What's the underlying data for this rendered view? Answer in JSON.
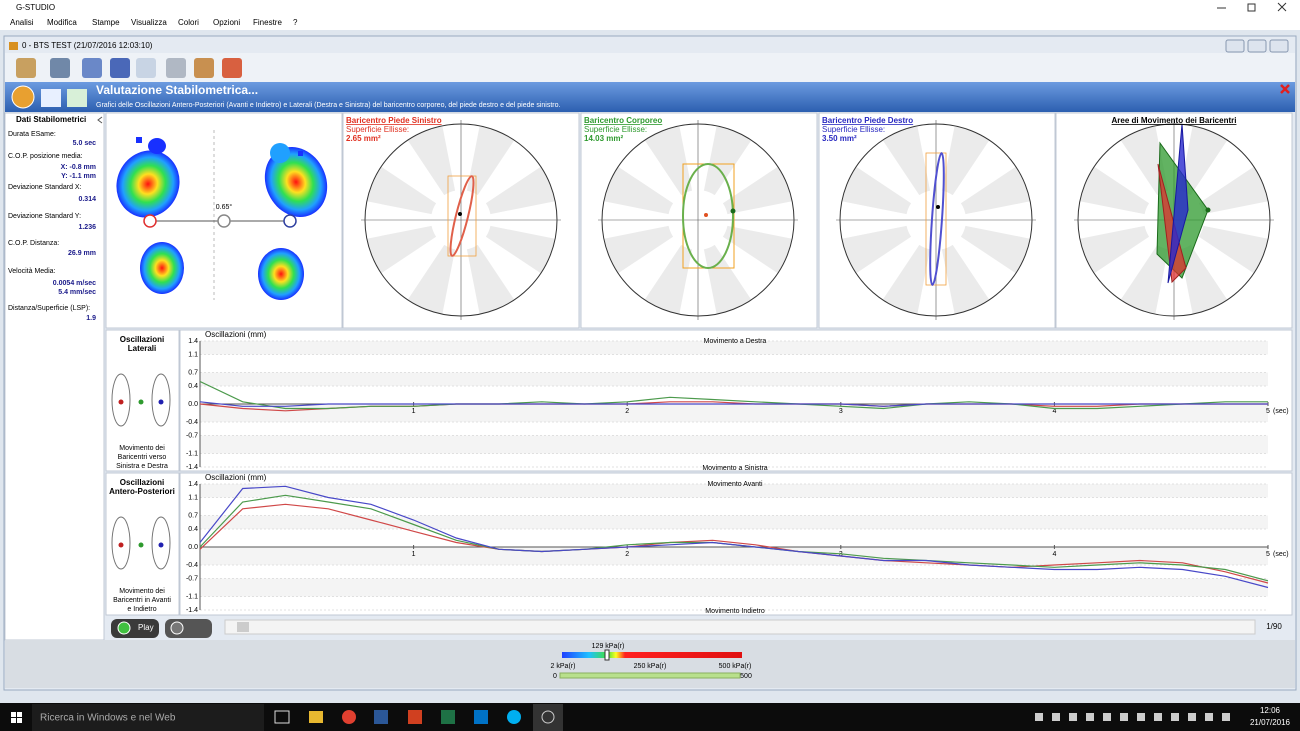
{
  "window": {
    "title": "G-STUDIO"
  },
  "menu": [
    "Analisi",
    "Modifica",
    "Stampe",
    "Visualizza",
    "Colori",
    "Opzioni",
    "Finestre",
    "?"
  ],
  "document": {
    "title": "0 -  BTS TEST  (21/07/2016 12:03:10)"
  },
  "header": {
    "title": "Valutazione Stabilometrica...",
    "subtitle": "Grafici delle Oscillazioni Antero-Posteriori (Avanti e Indietro) e Laterali (Destra e Sinistra) del baricentro corporeo, del piede destro e del piede sinistro."
  },
  "side_panel": {
    "title": "Dati Stabilometrici",
    "items": [
      {
        "label": "Durata ESame:",
        "values": [
          "5.0 sec"
        ]
      },
      {
        "label": "C.O.P. posizione media:",
        "values": [
          "X: -0.8 mm",
          "Y: -1.1 mm"
        ]
      },
      {
        "label": "Deviazione Standard X:",
        "values": [
          "0.314"
        ]
      },
      {
        "label": "Deviazione Standard Y:",
        "values": [
          "1.236"
        ]
      },
      {
        "label": "C.O.P. Distanza:",
        "values": [
          "26.9 mm"
        ]
      },
      {
        "label": "Velocità Media:",
        "values": [
          "0.0054 m/sec",
          "5.4 mm/sec"
        ]
      },
      {
        "label": "Distanza/Superficie (LSP):",
        "values": [
          "1.9"
        ]
      }
    ]
  },
  "pressure_map": {
    "angle": "0.65°"
  },
  "polar_panels": [
    {
      "title": "Baricentro Piede Sinistro",
      "label": "Superficie Ellisse:",
      "value": "2.65 mm²",
      "color": "#e03020"
    },
    {
      "title": "Baricentro Corporeo",
      "label": "Superficie Ellisse:",
      "value": "14.03 mm²",
      "color": "#2e9a2e"
    },
    {
      "title": "Baricentro Piede Destro",
      "label": "Superficie Ellisse:",
      "value": "3.50 mm²",
      "color": "#2828c0"
    },
    {
      "title": "Aree di Movimento dei Baricentri",
      "color": "#000000"
    }
  ],
  "chart_panels": [
    {
      "title": [
        "Oscillazioni",
        "Laterali"
      ],
      "caption": [
        "Movimento dei",
        "Baricentri verso",
        "Sinistra e Destra"
      ]
    },
    {
      "title": [
        "Oscillazioni",
        "Antero-Posteriori"
      ],
      "caption": [
        "Movimento dei",
        "Baricentri in Avanti",
        "e Indietro"
      ]
    }
  ],
  "controls": {
    "play": "Play",
    "frame": "1/90",
    "pressure": "129 kPa(r)",
    "scale_labels": [
      "2 kPa(r)",
      "250 kPa(r)",
      "500 kPa(r)"
    ],
    "slider_min": "0",
    "slider_max": "500"
  },
  "taskbar": {
    "search": "Ricerca in Windows e nel Web",
    "time": "12:06",
    "date": "21/07/2016"
  },
  "chart_data": [
    {
      "type": "line",
      "y_label": "Oscillazioni (mm)",
      "x_unit": "(sec)",
      "annotations": [
        "Movimento a Destra",
        "Movimento a Sinistra"
      ],
      "x": [
        0,
        0.2,
        0.4,
        0.6,
        0.8,
        1,
        1.2,
        1.4,
        1.6,
        1.8,
        2,
        2.2,
        2.4,
        2.6,
        2.8,
        3,
        3.2,
        3.4,
        3.6,
        3.8,
        4,
        4.2,
        4.4,
        4.6,
        4.8,
        5
      ],
      "xlim": [
        0,
        5
      ],
      "xticks": [
        1,
        2,
        3,
        4,
        5
      ],
      "ylim": [
        -1.4,
        1.4
      ],
      "yticks": [
        1.4,
        1.1,
        0.7,
        0.4,
        {
          "value": 0,
          "label": "0.0"
        },
        -0.4,
        -0.7,
        -1.1,
        -1.4
      ],
      "grid": true,
      "series": [
        {
          "color": "#d04848",
          "values": [
            0.0,
            -0.1,
            -0.15,
            -0.1,
            -0.05,
            -0.05,
            0.0,
            0.0,
            0.0,
            0.0,
            0.0,
            0.05,
            0.05,
            0.0,
            0.0,
            0.0,
            -0.05,
            0.0,
            0.0,
            0.0,
            -0.05,
            -0.05,
            0.0,
            0.0,
            0.0,
            0.0
          ]
        },
        {
          "color": "#4c9a4c",
          "values": [
            0.5,
            0.05,
            -0.1,
            -0.1,
            -0.05,
            -0.05,
            0.0,
            0.0,
            0.05,
            0.0,
            0.05,
            0.15,
            0.1,
            0.05,
            0.0,
            -0.05,
            -0.1,
            0.0,
            0.05,
            0.0,
            -0.1,
            -0.1,
            -0.05,
            0.0,
            0.05,
            0.05
          ]
        },
        {
          "color": "#4848c8",
          "values": [
            0.05,
            -0.05,
            -0.05,
            0.0,
            0.0,
            0.0,
            0.0,
            0.0,
            0.0,
            0.0,
            0.0,
            0.0,
            0.0,
            0.0,
            0.0,
            0.0,
            -0.05,
            0.0,
            0.0,
            0.0,
            0.0,
            0.0,
            0.0,
            0.0,
            0.0,
            0.0
          ]
        }
      ]
    },
    {
      "type": "line",
      "y_label": "Oscillazioni (mm)",
      "x_unit": "(sec)",
      "annotations": [
        "Movimento Avanti",
        "Movimento Indietro"
      ],
      "x": [
        0,
        0.2,
        0.4,
        0.6,
        0.8,
        1,
        1.2,
        1.4,
        1.6,
        1.8,
        2,
        2.2,
        2.4,
        2.6,
        2.8,
        3,
        3.2,
        3.4,
        3.6,
        3.8,
        4,
        4.2,
        4.4,
        4.6,
        4.8,
        5
      ],
      "xlim": [
        0,
        5
      ],
      "xticks": [
        1,
        2,
        3,
        4,
        5
      ],
      "ylim": [
        -1.4,
        1.4
      ],
      "yticks": [
        1.4,
        1.1,
        0.7,
        0.4,
        {
          "value": 0,
          "label": "0.0"
        },
        -0.4,
        -0.7,
        -1.1,
        -1.4
      ],
      "grid": true,
      "series": [
        {
          "color": "#d04848",
          "values": [
            -0.05,
            0.85,
            0.95,
            0.85,
            0.6,
            0.35,
            0.1,
            -0.05,
            -0.1,
            -0.05,
            0.0,
            0.1,
            0.15,
            0.05,
            -0.1,
            -0.2,
            -0.3,
            -0.35,
            -0.4,
            -0.45,
            -0.4,
            -0.35,
            -0.3,
            -0.35,
            -0.55,
            -0.8
          ]
        },
        {
          "color": "#4c9a4c",
          "values": [
            0.0,
            1.0,
            1.15,
            1.0,
            0.85,
            0.5,
            0.15,
            -0.05,
            -0.1,
            -0.05,
            0.05,
            0.1,
            0.1,
            0.0,
            -0.1,
            -0.15,
            -0.25,
            -0.3,
            -0.35,
            -0.4,
            -0.45,
            -0.4,
            -0.35,
            -0.4,
            -0.5,
            -0.75
          ]
        },
        {
          "color": "#4848c8",
          "values": [
            0.1,
            1.3,
            1.35,
            1.1,
            0.95,
            0.6,
            0.2,
            -0.05,
            -0.1,
            -0.05,
            0.0,
            0.05,
            0.1,
            0.0,
            -0.1,
            -0.2,
            -0.3,
            -0.3,
            -0.4,
            -0.45,
            -0.5,
            -0.5,
            -0.45,
            -0.5,
            -0.65,
            -0.9
          ]
        }
      ]
    }
  ]
}
